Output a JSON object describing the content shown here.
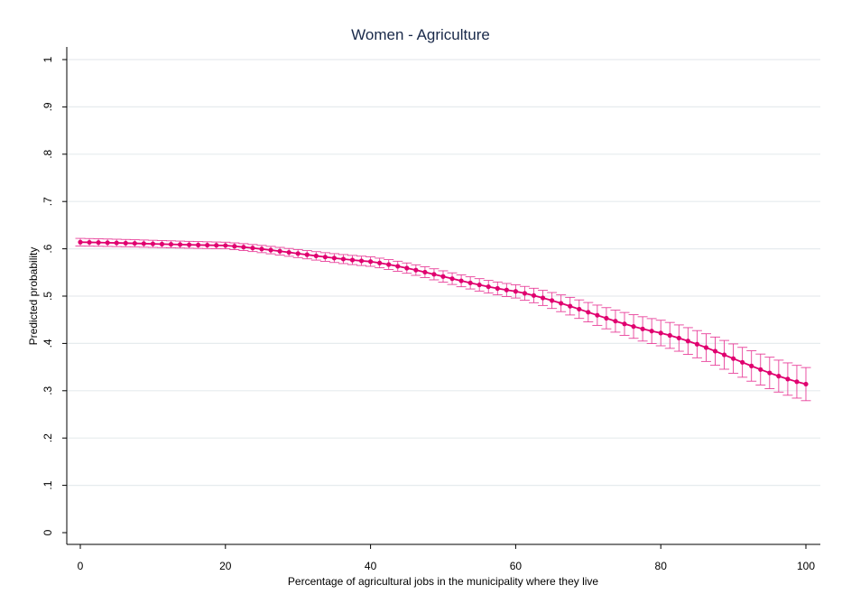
{
  "chart_data": {
    "type": "line",
    "title": "Women - Agriculture",
    "xlabel": "Percentage of agricultural jobs in the municipality where they live",
    "ylabel": "Predicted probability",
    "xlim": [
      0,
      100
    ],
    "ylim": [
      0,
      1
    ],
    "x_ticks": [
      0,
      20,
      40,
      60,
      80,
      100
    ],
    "x_tick_labels": [
      "0",
      "20",
      "40",
      "60",
      "80",
      "100"
    ],
    "y_ticks": [
      0,
      0.1,
      0.2,
      0.3,
      0.4,
      0.5,
      0.6,
      0.7,
      0.8,
      0.9,
      1
    ],
    "y_tick_labels": [
      "0",
      ".1",
      ".2",
      ".3",
      ".4",
      ".5",
      ".6",
      ".7",
      ".8",
      ".9",
      "1"
    ],
    "grid": true,
    "x_range": [
      0,
      100
    ],
    "x_step": 1.25,
    "points_shown": "predicted probability with confidence interval error bars",
    "series": [
      {
        "predicted_at": [
          0,
          20,
          40,
          60,
          80,
          100
        ],
        "values": [
          0.614,
          0.607,
          0.573,
          0.51,
          0.422,
          0.314
        ],
        "ci_lower": [
          0.606,
          0.6,
          0.563,
          0.496,
          0.395,
          0.279
        ],
        "ci_upper": [
          0.622,
          0.614,
          0.583,
          0.524,
          0.449,
          0.349
        ]
      }
    ],
    "colors": {
      "series": "#e0006f",
      "error_bars": "#e8409a",
      "grid": "#e6ebee",
      "axis": "#000000",
      "title": "#1a2a4a"
    }
  }
}
